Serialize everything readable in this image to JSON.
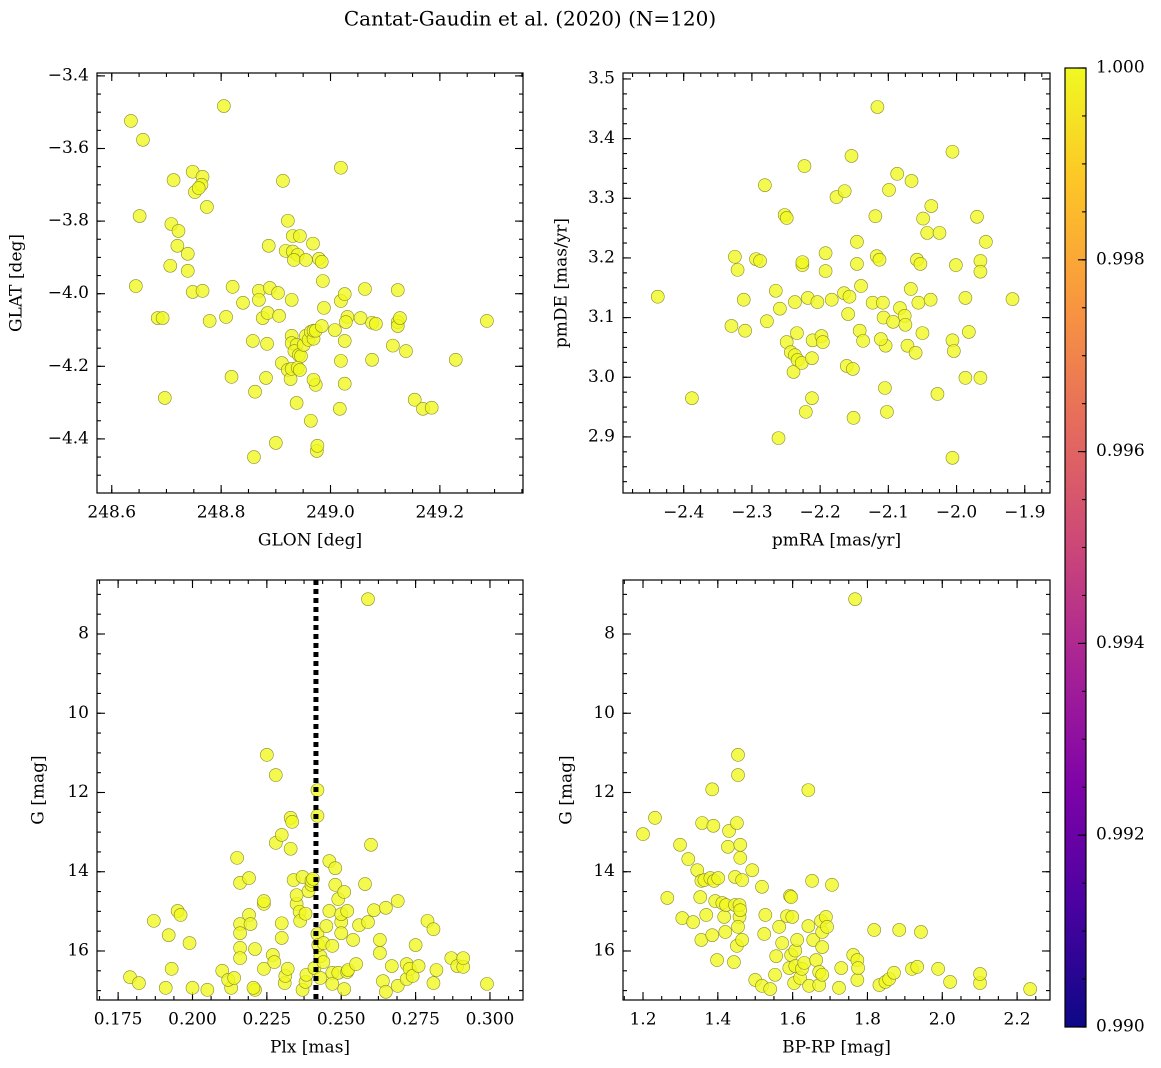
{
  "title": "Cantat-Gaudin et al. (2020) (N=120)",
  "colorbar": {
    "cmap": "plasma",
    "lim": [
      0.99,
      1.0
    ],
    "ticks": [
      {
        "value": 0.99,
        "label": "0.990"
      },
      0.992,
      0.994,
      0.996,
      0.998,
      {
        "value": 1.0,
        "label": "1.000"
      }
    ]
  },
  "chart_data": [
    {
      "type": "scatter",
      "xlabel": "GLON [deg]",
      "ylabel": "GLAT [deg]",
      "color": "#f0f921",
      "xlim": [
        248.573,
        249.352
      ],
      "ylim": [
        -4.549,
        -3.392
      ],
      "xticks": [
        248.6,
        248.8,
        {
          "value": 249.0,
          "label": "249.0"
        },
        249.2
      ],
      "yticks": [
        {
          "value": -4.4,
          "label": "−4.4"
        },
        {
          "value": -4.2,
          "label": "−4.2"
        },
        {
          "value": -4.0,
          "label": "−4.0"
        },
        {
          "value": -3.8,
          "label": "−3.8"
        },
        {
          "value": -3.6,
          "label": "−3.6"
        },
        {
          "value": -3.4,
          "label": "−3.4"
        }
      ],
      "x": [
        248.635,
        248.805,
        248.657,
        248.651,
        248.644,
        248.748,
        248.713,
        248.752,
        248.766,
        248.764,
        248.759,
        248.774,
        248.709,
        248.722,
        248.72,
        248.739,
        248.707,
        248.739,
        248.748,
        248.766,
        248.684,
        248.693,
        248.779,
        248.809,
        248.821,
        248.84,
        248.697,
        248.819,
        248.858,
        248.862,
        248.86,
        248.869,
        248.869,
        248.876,
        248.885,
        248.889,
        248.882,
        248.884,
        248.9,
        248.887,
        248.904,
        248.906,
        248.911,
        248.918,
        248.922,
        248.927,
        248.913,
        248.922,
        248.931,
        248.944,
        248.931,
        248.94,
        248.933,
        248.955,
        248.929,
        248.929,
        248.929,
        248.938,
        248.934,
        248.942,
        248.946,
        248.929,
        248.94,
        248.938,
        248.944,
        248.951,
        248.955,
        248.96,
        248.964,
        248.969,
        248.969,
        248.968,
        248.979,
        248.984,
        248.986,
        248.973,
        248.973,
        248.964,
        248.969,
        248.975,
        248.984,
        248.976,
        248.988,
        249.019,
        249.019,
        249.026,
        249.019,
        249.026,
        249.026,
        249.017,
        249.031,
        249.028,
        249.008,
        249.063,
        249.055,
        249.076,
        249.083,
        249.076,
        249.114,
        249.123,
        249.123,
        249.123,
        249.127,
        249.138,
        249.154,
        249.169,
        249.185,
        249.229,
        249.286
      ],
      "y": [
        -3.524,
        -3.483,
        -3.576,
        -3.786,
        -3.979,
        -3.664,
        -3.687,
        -3.72,
        -3.678,
        -3.7,
        -3.709,
        -3.761,
        -3.808,
        -3.827,
        -3.868,
        -3.89,
        -3.923,
        -3.937,
        -3.995,
        -3.992,
        -4.067,
        -4.067,
        -4.075,
        -4.064,
        -3.981,
        -4.025,
        -4.287,
        -4.229,
        -4.13,
        -4.27,
        -4.45,
        -3.992,
        -4.017,
        -4.067,
        -4.053,
        -3.984,
        -4.232,
        -4.138,
        -4.411,
        -3.868,
        -3.998,
        -4.061,
        -4.191,
        -3.882,
        -4.21,
        -4.235,
        -3.689,
        -3.799,
        -3.841,
        -3.841,
        -3.884,
        -3.893,
        -3.907,
        -3.907,
        -4.017,
        -4.116,
        -4.136,
        -4.141,
        -4.158,
        -4.169,
        -4.172,
        -4.207,
        -4.204,
        -4.301,
        -4.21,
        -4.141,
        -4.116,
        -4.127,
        -4.105,
        -4.124,
        -4.102,
        -3.862,
        -3.904,
        -3.912,
        -3.965,
        -4.102,
        -4.251,
        -4.35,
        -4.237,
        -4.433,
        -4.089,
        -4.419,
        -4.039,
        -3.653,
        -4.02,
        -4.001,
        -4.185,
        -4.248,
        -4.13,
        -4.317,
        -4.064,
        -4.078,
        -4.1,
        -3.987,
        -4.067,
        -4.08,
        -4.083,
        -4.182,
        -4.143,
        -3.99,
        -4.078,
        -4.089,
        -4.067,
        -4.158,
        -4.292,
        -4.317,
        -4.314,
        -4.182,
        -4.075
      ]
    },
    {
      "type": "scatter",
      "xlabel": "pmRA [mas/yr]",
      "ylabel": "pmDE [mas/yr]",
      "color": "#f0f921",
      "xlim": [
        -2.489,
        -1.863
      ],
      "ylim": [
        2.806,
        3.51
      ],
      "xticks": [
        {
          "value": -2.4,
          "label": "−2.4"
        },
        {
          "value": -2.3,
          "label": "−2.3"
        },
        {
          "value": -2.2,
          "label": "−2.2"
        },
        {
          "value": -2.1,
          "label": "−2.1"
        },
        {
          "value": -2.0,
          "label": "−2.0"
        },
        {
          "value": -1.9,
          "label": "−1.9"
        }
      ],
      "yticks": [
        2.9,
        {
          "value": 3.0,
          "label": "3.0"
        },
        3.1,
        3.2,
        3.3,
        3.4,
        3.5
      ],
      "x": [
        -2.438,
        -2.388,
        -2.325,
        -2.321,
        -2.312,
        -2.33,
        -2.31,
        -2.294,
        -2.288,
        -2.281,
        -2.278,
        -2.259,
        -2.265,
        -2.261,
        -2.252,
        -2.249,
        -2.249,
        -2.237,
        -2.243,
        -2.237,
        -2.234,
        -2.239,
        -2.226,
        -2.226,
        -2.233,
        -2.227,
        -2.218,
        -2.221,
        -2.212,
        -2.223,
        -2.211,
        -2.212,
        -2.204,
        -2.198,
        -2.196,
        -2.192,
        -2.183,
        -2.192,
        -2.154,
        -2.176,
        -2.164,
        -2.165,
        -2.157,
        -2.159,
        -2.161,
        -2.152,
        -2.146,
        -2.146,
        -2.14,
        -2.142,
        -2.137,
        -2.151,
        -2.116,
        -2.123,
        -2.119,
        -2.117,
        -2.113,
        -2.108,
        -2.107,
        -2.104,
        -2.105,
        -2.102,
        -2.111,
        -2.099,
        -2.093,
        -2.087,
        -2.083,
        -2.076,
        -2.075,
        -2.072,
        -2.067,
        -2.066,
        -2.058,
        -2.056,
        -2.06,
        -2.05,
        -2.049,
        -2.053,
        -2.043,
        -2.038,
        -2.037,
        -2.025,
        -1.987,
        -1.987,
        -2.006,
        -2.006,
        -2.001,
        -2.006,
        -2.004,
        -1.982,
        -1.965,
        -1.97,
        -1.965,
        -1.965,
        -1.957,
        -1.918,
        -2.028
      ],
      "y": [
        3.135,
        2.965,
        3.202,
        3.18,
        3.13,
        3.086,
        3.078,
        3.198,
        3.195,
        3.322,
        3.094,
        3.115,
        3.145,
        2.898,
        3.272,
        3.267,
        3.059,
        3.126,
        3.042,
        3.037,
        3.074,
        3.009,
        3.188,
        3.193,
        3.029,
        3.024,
        3.133,
        2.942,
        2.965,
        3.354,
        3.062,
        3.032,
        3.126,
        3.069,
        3.059,
        3.178,
        3.13,
        3.208,
        3.371,
        3.302,
        3.312,
        3.141,
        3.135,
        3.106,
        3.019,
        3.014,
        3.227,
        3.19,
        3.153,
        3.078,
        3.061,
        2.932,
        3.453,
        3.125,
        3.27,
        3.203,
        3.197,
        3.125,
        3.1,
        3.053,
        2.982,
        2.942,
        3.064,
        3.314,
        3.093,
        3.341,
        3.116,
        3.103,
        3.088,
        3.053,
        3.148,
        3.329,
        3.197,
        3.125,
        3.041,
        3.074,
        3.266,
        3.19,
        3.242,
        3.13,
        3.287,
        3.242,
        3.133,
        2.999,
        2.865,
        3.378,
        3.188,
        3.062,
        3.044,
        3.076,
        3.195,
        3.269,
        3.177,
        2.999,
        3.227,
        3.131,
        2.972
      ]
    },
    {
      "type": "scatter",
      "xlabel": "Plx [mas]",
      "ylabel": "G [mag]",
      "color": "#f0f921",
      "vline": 0.2415,
      "xlim": [
        0.1679,
        0.3111
      ],
      "ylim": [
        17.237,
        6.637
      ],
      "xticks": [
        0.175,
        {
          "value": 0.2,
          "label": "0.200"
        },
        0.225,
        {
          "value": 0.25,
          "label": "0.250"
        },
        0.275,
        {
          "value": 0.3,
          "label": "0.300"
        }
      ],
      "yticks": [
        8,
        10,
        12,
        14,
        16
      ],
      "x": [
        0.179,
        0.182,
        0.187,
        0.192,
        0.195,
        0.196,
        0.193,
        0.191,
        0.199,
        0.2,
        0.205,
        0.21,
        0.213,
        0.212,
        0.214,
        0.215,
        0.216,
        0.216,
        0.216,
        0.216,
        0.216,
        0.219,
        0.219,
        0.2195,
        0.221,
        0.221,
        0.2205,
        0.224,
        0.224,
        0.225,
        0.224,
        0.227,
        0.228,
        0.228,
        0.2275,
        0.23,
        0.23,
        0.23,
        0.231,
        0.2312,
        0.232,
        0.233,
        0.233,
        0.2335,
        0.234,
        0.235,
        0.235,
        0.236,
        0.2362,
        0.237,
        0.237,
        0.238,
        0.2383,
        0.238,
        0.239,
        0.24,
        0.24,
        0.241,
        0.2405,
        0.242,
        0.242,
        0.242,
        0.243,
        0.2423,
        0.243,
        0.244,
        0.244,
        0.245,
        0.246,
        0.246,
        0.247,
        0.247,
        0.247,
        0.248,
        0.248,
        0.249,
        0.249,
        0.25,
        0.25,
        0.25,
        0.251,
        0.251,
        0.252,
        0.252,
        0.2523,
        0.254,
        0.255,
        0.256,
        0.258,
        0.259,
        0.26,
        0.259,
        0.261,
        0.263,
        0.263,
        0.264,
        0.265,
        0.265,
        0.267,
        0.269,
        0.269,
        0.272,
        0.272,
        0.273,
        0.274,
        0.275,
        0.276,
        0.279,
        0.281,
        0.281,
        0.282,
        0.287,
        0.289,
        0.291,
        0.291,
        0.299
      ],
      "y": [
        16.66,
        16.81,
        15.24,
        15.6,
        14.99,
        15.09,
        16.45,
        16.93,
        15.8,
        16.93,
        16.98,
        16.5,
        16.93,
        16.73,
        16.68,
        13.65,
        14.28,
        15.32,
        15.55,
        15.92,
        16.18,
        14.16,
        15.09,
        15.32,
        16.98,
        15.95,
        16.93,
        14.81,
        14.74,
        11.05,
        16.45,
        16.1,
        13.27,
        11.56,
        16.28,
        13.07,
        15.3,
        15.67,
        16.81,
        16.63,
        16.45,
        12.64,
        13.42,
        12.74,
        14.21,
        14.81,
        14.59,
        15.01,
        15.24,
        14.13,
        16.98,
        16.78,
        16.6,
        15.06,
        14.49,
        14.33,
        14.23,
        16.43,
        14.18,
        11.94,
        15.57,
        12.59,
        16.13,
        15.85,
        16.68,
        16.28,
        15.8,
        15.37,
        13.73,
        14.99,
        16.55,
        16.83,
        15.87,
        14.33,
        13.91,
        14.69,
        16.55,
        15.27,
        15.55,
        15.07,
        14.51,
        16.96,
        16.53,
        14.99,
        16.48,
        15.72,
        16.33,
        15.35,
        14.31,
        7.12,
        13.32,
        15.27,
        14.97,
        16.05,
        15.72,
        16.76,
        14.91,
        17.03,
        16.38,
        16.88,
        14.74,
        16.33,
        16.71,
        16.45,
        16.63,
        15.85,
        16.38,
        15.24,
        15.45,
        16.81,
        16.48,
        16.18,
        16.38,
        16.4,
        16.18,
        16.83
      ]
    },
    {
      "type": "scatter",
      "xlabel": "BP-RP [mag]",
      "ylabel": "G [mag]",
      "color": "#f0f921",
      "xlim": [
        1.1465,
        2.288
      ],
      "ylim": [
        17.237,
        6.637
      ],
      "xticks": [
        1.2,
        1.4,
        1.6,
        1.8,
        {
          "value": 2.0,
          "label": "2.0"
        },
        2.2
      ],
      "yticks": [
        8,
        10,
        12,
        14,
        16
      ],
      "x": [
        1.2,
        1.232,
        1.265,
        1.299,
        1.305,
        1.321,
        1.334,
        1.345,
        1.356,
        1.353,
        1.356,
        1.358,
        1.364,
        1.369,
        1.38,
        1.385,
        1.385,
        1.388,
        1.39,
        1.393,
        1.398,
        1.401,
        1.412,
        1.417,
        1.42,
        1.422,
        1.427,
        1.43,
        1.443,
        1.446,
        1.446,
        1.451,
        1.454,
        1.454,
        1.46,
        1.46,
        1.451,
        1.458,
        1.454,
        1.465,
        1.458,
        1.46,
        1.465,
        1.492,
        1.5,
        1.518,
        1.518,
        1.527,
        1.524,
        1.54,
        1.553,
        1.556,
        1.564,
        1.572,
        1.585,
        1.591,
        1.593,
        1.596,
        1.596,
        1.599,
        1.604,
        1.607,
        1.607,
        1.612,
        1.62,
        1.625,
        1.631,
        1.642,
        1.644,
        1.642,
        1.652,
        1.655,
        1.663,
        1.671,
        1.671,
        1.679,
        1.679,
        1.676,
        1.679,
        1.689,
        1.692,
        1.705,
        1.724,
        1.73,
        1.762,
        1.767,
        1.773,
        1.773,
        1.775,
        1.818,
        1.832,
        1.848,
        1.858,
        1.871,
        1.885,
        1.919,
        1.943,
        1.933,
        1.989,
        2.021,
        2.101,
        2.101,
        2.235
      ],
      "y": [
        13.05,
        12.64,
        14.66,
        13.32,
        15.17,
        13.68,
        15.27,
        13.96,
        14.23,
        14.64,
        15.72,
        12.77,
        14.21,
        15.09,
        14.16,
        11.92,
        15.6,
        12.84,
        14.23,
        14.74,
        16.23,
        14.16,
        14.79,
        15.14,
        15.52,
        14.84,
        13.37,
        12.97,
        16.28,
        14.84,
        14.13,
        12.77,
        11.05,
        11.56,
        13.65,
        13.32,
        15.87,
        15.14,
        15.39,
        14.21,
        14.84,
        14.97,
        15.72,
        13.96,
        16.73,
        16.88,
        14.38,
        15.09,
        15.57,
        16.96,
        16.6,
        16.13,
        15.39,
        15.8,
        15.12,
        16.43,
        14.61,
        14.64,
        16.1,
        15.14,
        16.81,
        16.38,
        15.99,
        15.72,
        16.68,
        16.45,
        16.3,
        15.37,
        16.88,
        11.94,
        14.23,
        15.72,
        16.23,
        16.53,
        16.86,
        15.9,
        15.52,
        15.24,
        16.6,
        15.14,
        15.39,
        14.33,
        16.93,
        16.43,
        16.1,
        7.12,
        16.73,
        16.23,
        16.43,
        15.47,
        16.86,
        16.78,
        16.71,
        16.55,
        15.47,
        16.45,
        15.52,
        16.4,
        16.45,
        16.78,
        16.81,
        16.58,
        16.96
      ]
    }
  ]
}
